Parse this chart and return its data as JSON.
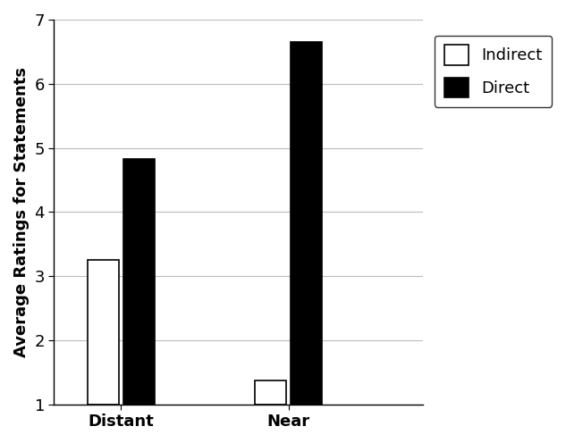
{
  "categories": [
    "Distant",
    "Near"
  ],
  "indirect_values": [
    3.25,
    1.37
  ],
  "direct_values": [
    4.82,
    6.65
  ],
  "indirect_color": "#ffffff",
  "direct_color": "#000000",
  "indirect_label": "Indirect",
  "direct_label": "Direct",
  "ylabel": "Average Ratings for Statements",
  "ylim": [
    1,
    7
  ],
  "yticks": [
    1,
    2,
    3,
    4,
    5,
    6,
    7
  ],
  "bar_width": 0.28,
  "edge_color": "#000000",
  "background_color": "#ffffff",
  "tick_fontsize": 13,
  "label_fontsize": 13,
  "legend_fontsize": 13,
  "group_centers": [
    1.0,
    2.5
  ],
  "xlim": [
    0.4,
    3.7
  ]
}
